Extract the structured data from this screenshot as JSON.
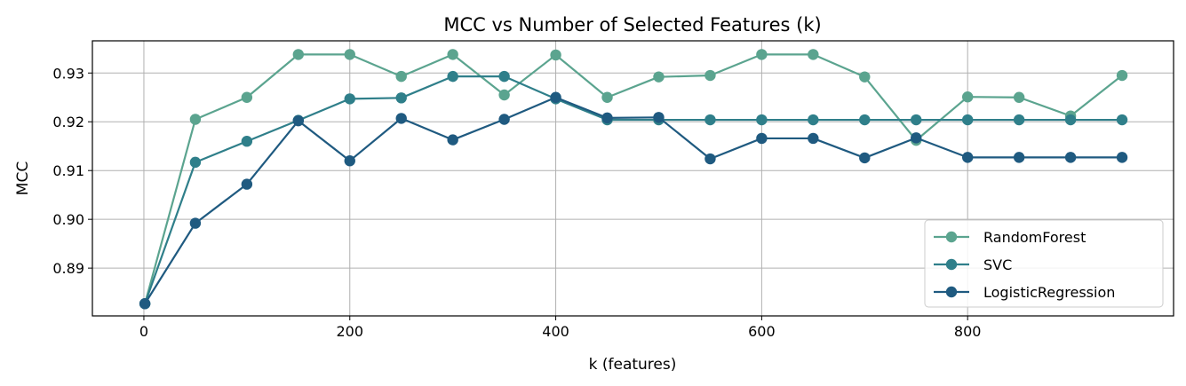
{
  "chart_data": {
    "type": "line",
    "title": "MCC vs Number of Selected Features (k)",
    "xlabel": "k (features)",
    "ylabel": "MCC",
    "xlim": [
      -50,
      1000
    ],
    "ylim": [
      0.8802,
      0.9366
    ],
    "xticks": [
      0,
      200,
      400,
      600,
      800
    ],
    "yticks": [
      0.89,
      0.9,
      0.91,
      0.92,
      0.93
    ],
    "ytick_labels": [
      "0.89",
      "0.90",
      "0.91",
      "0.92",
      "0.93"
    ],
    "grid": true,
    "legend_position": "lower right",
    "x": [
      1,
      50,
      100,
      150,
      200,
      250,
      300,
      350,
      400,
      450,
      500,
      550,
      600,
      650,
      700,
      750,
      800,
      850,
      900,
      950
    ],
    "series": [
      {
        "name": "RandomForest",
        "color": "#5ba48f",
        "values": [
          0.8827,
          0.9205,
          0.925,
          0.9338,
          0.9338,
          0.9293,
          0.9338,
          0.9255,
          0.9337,
          0.925,
          0.9292,
          0.9295,
          0.9338,
          0.9338,
          0.9292,
          0.9162,
          0.9251,
          0.925,
          0.9212,
          0.9295
        ]
      },
      {
        "name": "SVC",
        "color": "#2f7f8a",
        "values": [
          0.8827,
          0.9117,
          0.916,
          0.9203,
          0.9247,
          0.9249,
          0.9293,
          0.9293,
          0.9247,
          0.9204,
          0.9204,
          0.9204,
          0.9204,
          0.9204,
          0.9204,
          0.9204,
          0.9204,
          0.9204,
          0.9204,
          0.9204
        ]
      },
      {
        "name": "LogisticRegression",
        "color": "#1f5a80",
        "values": [
          0.8827,
          0.8992,
          0.9072,
          0.9202,
          0.912,
          0.9207,
          0.9163,
          0.9205,
          0.925,
          0.9208,
          0.9209,
          0.9124,
          0.9166,
          0.9166,
          0.9126,
          0.9167,
          0.9127,
          0.9127,
          0.9127,
          0.9127
        ]
      }
    ]
  }
}
